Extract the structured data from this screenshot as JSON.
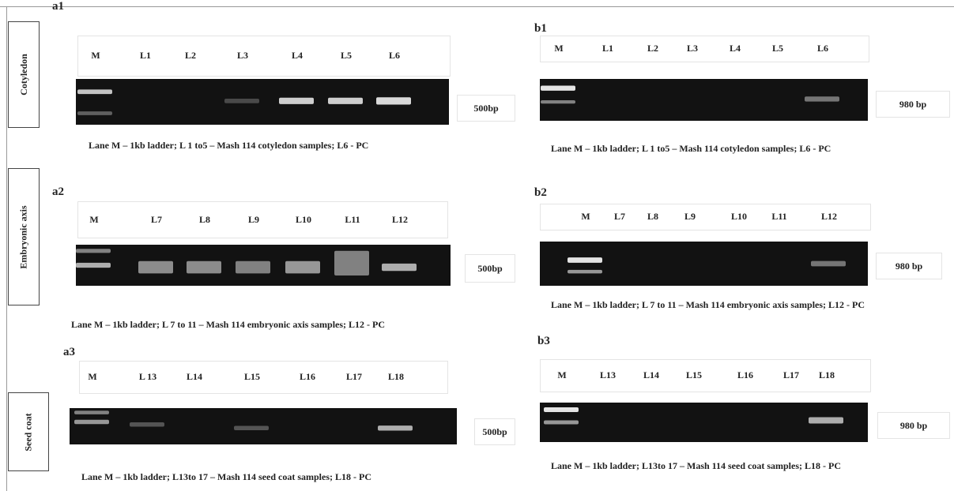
{
  "rows": [
    "Cotyledon",
    "Embryonic axis",
    "Seed coat"
  ],
  "panels": [
    {
      "label": "a1",
      "lanes": [
        "M",
        "L1",
        "L2",
        "L3",
        "L4",
        "L5",
        "L6"
      ],
      "size": "500bp",
      "caption": "Lane M – 1kb ladder; L 1 to5 – Mash 114 cotyledon samples; L6 - PC"
    },
    {
      "label": "a2",
      "lanes": [
        "M",
        "L7",
        "L8",
        "L9",
        "L10",
        "L11",
        "L12"
      ],
      "size": "500bp",
      "caption": "Lane M – 1kb ladder; L 7 to 11 – Mash 114 embryonic axis samples; L12 - PC"
    },
    {
      "label": "a3",
      "lanes": [
        "M",
        "L 13",
        "L14",
        "L15",
        "L16",
        "L17",
        "L18"
      ],
      "size": "500bp",
      "caption": "Lane M – 1kb ladder; L13to 17 – Mash 114 seed coat samples; L18 - PC"
    },
    {
      "label": "b1",
      "lanes": [
        "M",
        "L1",
        "L2",
        "L3",
        "L4",
        "L5",
        "L6"
      ],
      "size": "980 bp",
      "caption": "Lane M – 1kb ladder; L 1 to5 – Mash 114 cotyledon samples; L6 - PC"
    },
    {
      "label": "b2",
      "lanes": [
        "M",
        "L7",
        "L8",
        "L9",
        "L10",
        "L11",
        "L12"
      ],
      "size": "980 bp",
      "caption": "Lane M – 1kb ladder; L 7 to 11 – Mash 114 embryonic axis samples; L12 - PC"
    },
    {
      "label": "b3",
      "lanes": [
        "M",
        "L13",
        "L14",
        "L15",
        "L16",
        "L17",
        "L18"
      ],
      "size": "980 bp",
      "caption": "Lane M – 1kb ladder; L13to 17 – Mash 114 seed coat samples; L18 - PC"
    }
  ]
}
